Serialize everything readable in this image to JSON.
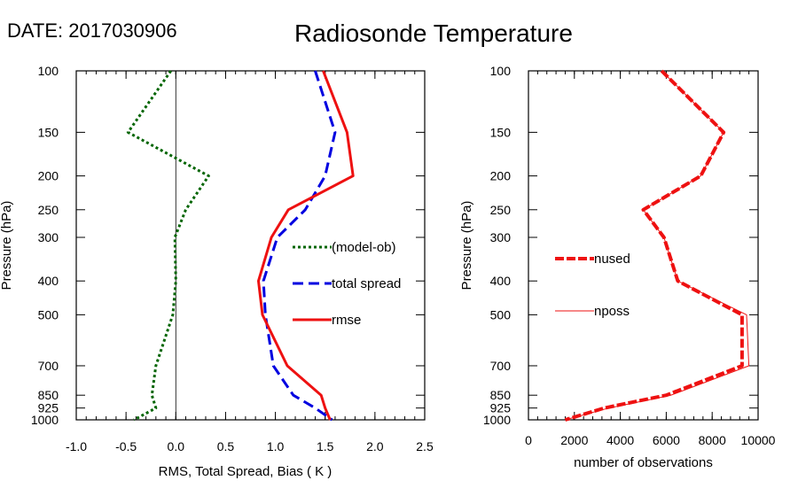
{
  "header": {
    "date": "DATE: 2017030906",
    "title": "Radiosonde Temperature"
  },
  "chart_data": [
    {
      "type": "line",
      "ylabel": "Pressure (hPa)",
      "xlabel": "RMS, Total Spread, Bias ( K )",
      "y_scale": "log",
      "y_reversed": true,
      "xlim": [
        -1.0,
        2.5
      ],
      "ylim": [
        100,
        1000
      ],
      "y_ticks": [
        "100",
        "150",
        "200",
        "250",
        "300",
        "400",
        "500",
        "700",
        "850",
        "925",
        "1000"
      ],
      "x_ticks": [
        "-1.0",
        "-0.5",
        "0.0",
        "0.5",
        "1.0",
        "1.5",
        "2.0",
        "2.5"
      ],
      "zero_line": 0.0,
      "pressure": [
        100,
        150,
        200,
        250,
        300,
        400,
        500,
        700,
        850,
        925,
        1000
      ],
      "series": [
        {
          "name": "(model-ob)",
          "color": "#006400",
          "style": "dotted",
          "values": [
            -0.05,
            -0.48,
            0.33,
            0.1,
            -0.01,
            0.0,
            -0.03,
            -0.2,
            -0.24,
            -0.2,
            -0.42
          ]
        },
        {
          "name": "total spread",
          "color": "#0000e0",
          "style": "dashed",
          "values": [
            1.4,
            1.6,
            1.5,
            1.3,
            1.02,
            0.88,
            0.9,
            0.98,
            1.18,
            1.4,
            1.57
          ]
        },
        {
          "name": "rmse",
          "color": "#ee1111",
          "style": "solid",
          "values": [
            1.48,
            1.72,
            1.78,
            1.13,
            0.96,
            0.83,
            0.87,
            1.12,
            1.46,
            1.5,
            1.55
          ]
        }
      ],
      "legend": "right-middle"
    },
    {
      "type": "line",
      "ylabel": "Pressure (hPa)",
      "xlabel": "number of observations",
      "y_scale": "log",
      "y_reversed": true,
      "xlim": [
        0,
        10000
      ],
      "ylim": [
        100,
        1000
      ],
      "y_ticks": [
        "100",
        "150",
        "200",
        "250",
        "300",
        "400",
        "500",
        "700",
        "850",
        "925",
        "1000"
      ],
      "x_ticks": [
        "0",
        "2000",
        "4000",
        "6000",
        "8000",
        "10000"
      ],
      "pressure": [
        100,
        150,
        200,
        250,
        300,
        400,
        500,
        700,
        850,
        925,
        1000
      ],
      "series": [
        {
          "name": "nused",
          "color": "#ee1111",
          "style": "dashed-thick",
          "values": [
            5800,
            8500,
            7500,
            5000,
            5900,
            6500,
            9300,
            9300,
            6000,
            3300,
            1600
          ]
        },
        {
          "name": "nposs",
          "color": "#ee1111",
          "style": "thin",
          "values": [
            5800,
            8500,
            7500,
            5000,
            5900,
            6500,
            9500,
            9600,
            6200,
            3500,
            1600
          ]
        }
      ],
      "legend": "left-middle"
    }
  ]
}
